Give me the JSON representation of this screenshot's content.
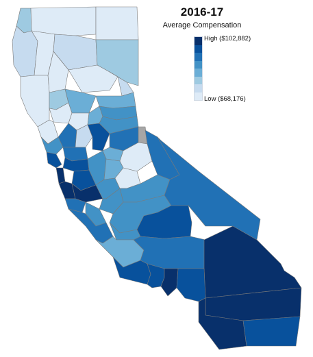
{
  "title": "2016-17",
  "subtitle": "Average Compensation",
  "legend": {
    "high_label": "High ($102,882)",
    "low_label": "Low ($68,176)",
    "high_value": 102882,
    "low_value": 68176,
    "scale_colors": [
      "#08306b",
      "#08519c",
      "#2171b5",
      "#4292c6",
      "#6baed6",
      "#9ecae1",
      "#c6dbef",
      "#deebf7"
    ]
  },
  "colors": {
    "no_data": "#a6a6a6",
    "border": "#7a7a7a"
  }
}
